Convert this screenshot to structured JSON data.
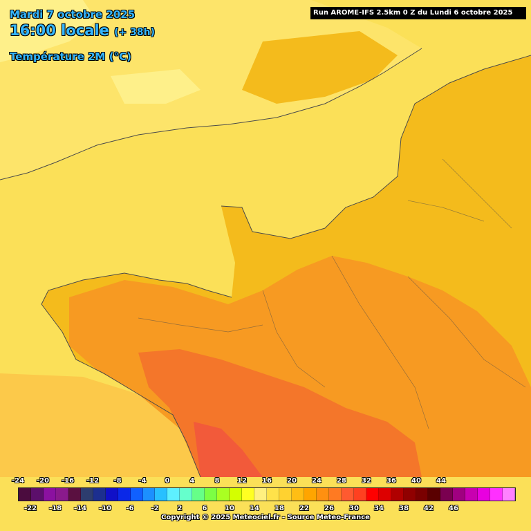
{
  "header": {
    "date": "Mardi 7 octobre 2025",
    "time": "16:00 locale",
    "offset": "(+ 38h)",
    "parameter": "Température 2M (°C)",
    "run": "Run AROME-IFS 2.5km 0 Z du Lundi 6 octobre 2025"
  },
  "legend": {
    "top_ticks": [
      "-24",
      "-20",
      "-16",
      "-12",
      "-8",
      "-4",
      "0",
      "4",
      "8",
      "12",
      "16",
      "20",
      "24",
      "28",
      "32",
      "36",
      "40",
      "44"
    ],
    "bottom_ticks": [
      "-22",
      "-18",
      "-14",
      "-10",
      "-6",
      "-2",
      "2",
      "6",
      "10",
      "14",
      "18",
      "22",
      "26",
      "30",
      "34",
      "38",
      "42",
      "46"
    ],
    "colors": [
      "#4b0c3e",
      "#5c0f6b",
      "#8b11a0",
      "#8a1a8c",
      "#5a1040",
      "#2d3d6e",
      "#1c2f8f",
      "#1010c8",
      "#0a28e8",
      "#1060ff",
      "#1c90ff",
      "#28c0ff",
      "#5ef0ff",
      "#66ffcc",
      "#66ff88",
      "#7cff44",
      "#aaff22",
      "#d4ff00",
      "#ffff22",
      "#fff080",
      "#ffe24a",
      "#ffd230",
      "#ffbe14",
      "#ffa500",
      "#ff9010",
      "#ff7a22",
      "#ff5a30",
      "#ff4020",
      "#ff0000",
      "#dd0000",
      "#b00000",
      "#900000",
      "#7a0000",
      "#5a0000",
      "#7a0050",
      "#a00080",
      "#c800b0",
      "#e800e0",
      "#ff30ff",
      "#ff80ff"
    ]
  },
  "map": {
    "sea_color": "#fbe058",
    "land_color": "#f4bb1c",
    "warm_color": "#f79a22",
    "hot_color": "#f4762a",
    "hottest_color": "#f25a3a",
    "cool_color": "#fde46a",
    "coolest_color": "#fef08a",
    "atlantic_color": "#fcc94a",
    "coast_color": "#4a4a4a"
  },
  "footer": {
    "copyright": "Copyright © 2025 Meteociel.fr - Source Meteo-France"
  }
}
